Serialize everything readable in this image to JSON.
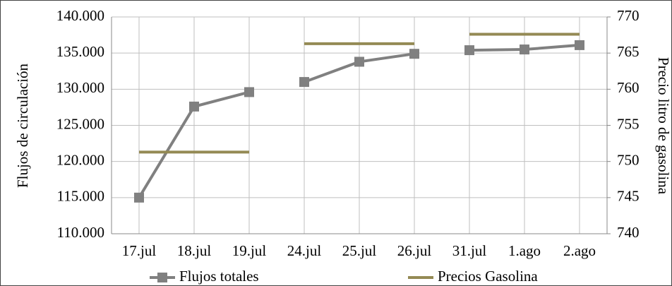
{
  "chart_data": {
    "type": "line",
    "categories": [
      "17.jul",
      "18.jul",
      "19.jul",
      "24.jul",
      "25.jul",
      "26.jul",
      "31.jul",
      "1.ago",
      "2.ago"
    ],
    "groups": [
      3,
      3,
      3
    ],
    "ylabel": "Flujos de circulación",
    "y2label": "Precio litro de gasolina",
    "ylim": [
      110000,
      140000
    ],
    "yticks": [
      {
        "value": 110000,
        "label": "110.000"
      },
      {
        "value": 115000,
        "label": "115.000"
      },
      {
        "value": 120000,
        "label": "120.000"
      },
      {
        "value": 125000,
        "label": "125.000"
      },
      {
        "value": 130000,
        "label": "130.000"
      },
      {
        "value": 135000,
        "label": "135.000"
      },
      {
        "value": 140000,
        "label": "140.000"
      }
    ],
    "y2lim": [
      740,
      770
    ],
    "y2ticks": [
      740,
      745,
      750,
      755,
      760,
      765,
      770
    ],
    "grid": true,
    "legend": "bottom",
    "series": [
      {
        "name": "Flujos totales",
        "color": "#808080",
        "marker": "square",
        "values": [
          115000,
          127600,
          129600,
          131000,
          133800,
          134900,
          135400,
          135500,
          136100
        ]
      },
      {
        "name": "Precios Gasolina",
        "color": "#948a54",
        "axis": "y2",
        "values": [
          751.3,
          751.3,
          751.3,
          766.3,
          766.3,
          766.3,
          767.6,
          767.6,
          767.6
        ]
      }
    ]
  }
}
